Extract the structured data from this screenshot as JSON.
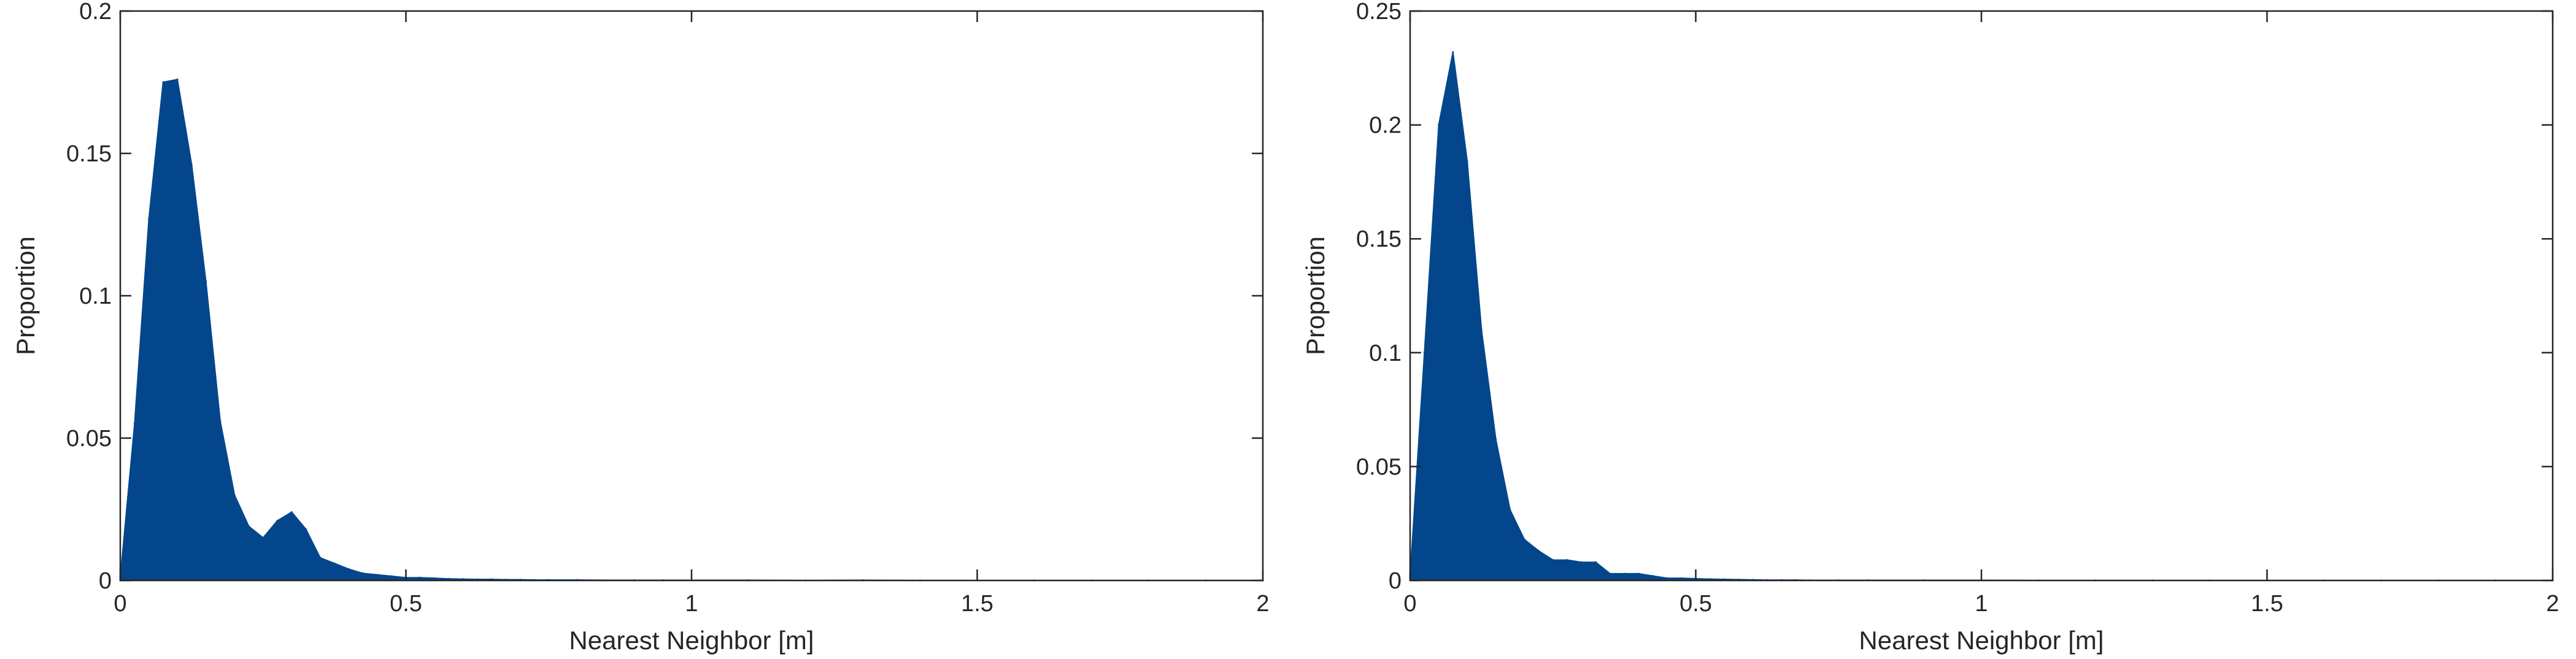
{
  "chart_data": [
    {
      "type": "area",
      "title": "",
      "xlabel": "Nearest Neighbor [m]",
      "ylabel": "Proportion",
      "xlim": [
        0,
        2
      ],
      "ylim": [
        0,
        0.2
      ],
      "xticks": [
        "0",
        "0.5",
        "1",
        "1.5",
        "2"
      ],
      "yticks": [
        "0",
        "0.05",
        "0.1",
        "0.15",
        "0.2"
      ],
      "grid": false,
      "color": "#03468b",
      "x": [
        0,
        0.025,
        0.05,
        0.075,
        0.1,
        0.125,
        0.15,
        0.175,
        0.2,
        0.225,
        0.25,
        0.275,
        0.3,
        0.325,
        0.35,
        0.375,
        0.4,
        0.425,
        0.45,
        0.475,
        0.5,
        0.525,
        0.55,
        0.575,
        0.6,
        0.625,
        0.65,
        0.675,
        0.7,
        0.725,
        0.75,
        0.8,
        0.85,
        0.9,
        0.95,
        1.0,
        1.1,
        1.2,
        1.3,
        1.4,
        1.5,
        1.6,
        1.7,
        1.8,
        1.9,
        2.0
      ],
      "values": [
        0.001,
        0.055,
        0.127,
        0.175,
        0.176,
        0.146,
        0.105,
        0.056,
        0.03,
        0.019,
        0.015,
        0.021,
        0.024,
        0.018,
        0.008,
        0.006,
        0.004,
        0.0025,
        0.002,
        0.0015,
        0.001,
        0.001,
        0.0008,
        0.0006,
        0.0005,
        0.0004,
        0.0004,
        0.0003,
        0.0003,
        0.0002,
        0.0002,
        0.0002,
        0.0001,
        0.0001,
        0.0001,
        0.0001,
        0.0001,
        0,
        0.0001,
        0,
        0,
        0,
        0,
        0,
        0,
        0
      ]
    },
    {
      "type": "area",
      "title": "",
      "xlabel": "Nearest Neighbor [m]",
      "ylabel": "Proportion",
      "xlim": [
        0,
        2
      ],
      "ylim": [
        0,
        0.25
      ],
      "xticks": [
        "0",
        "0.5",
        "1",
        "1.5",
        "2"
      ],
      "yticks": [
        "0",
        "0.05",
        "0.1",
        "0.15",
        "0.2",
        "0.25"
      ],
      "grid": false,
      "color": "#03468b",
      "x": [
        0,
        0.025,
        0.05,
        0.075,
        0.1,
        0.125,
        0.15,
        0.175,
        0.2,
        0.225,
        0.25,
        0.275,
        0.3,
        0.325,
        0.35,
        0.375,
        0.4,
        0.425,
        0.45,
        0.475,
        0.5,
        0.525,
        0.55,
        0.575,
        0.6,
        0.625,
        0.65,
        0.675,
        0.7,
        0.75,
        0.8,
        0.9,
        1.0,
        1.1,
        1.2,
        1.3,
        1.4,
        1.5,
        1.6,
        1.7,
        1.8,
        1.9,
        2.0
      ],
      "values": [
        0.002,
        0.1,
        0.2,
        0.232,
        0.184,
        0.11,
        0.062,
        0.031,
        0.018,
        0.013,
        0.009,
        0.009,
        0.008,
        0.008,
        0.003,
        0.003,
        0.003,
        0.002,
        0.001,
        0.001,
        0.0008,
        0.0006,
        0.0005,
        0.0004,
        0.0003,
        0.0002,
        0.0002,
        0.0002,
        0.0001,
        0.0001,
        0.0001,
        0.0001,
        0.0001,
        0,
        0,
        0,
        0,
        0,
        0,
        0,
        0,
        0,
        0
      ]
    }
  ]
}
